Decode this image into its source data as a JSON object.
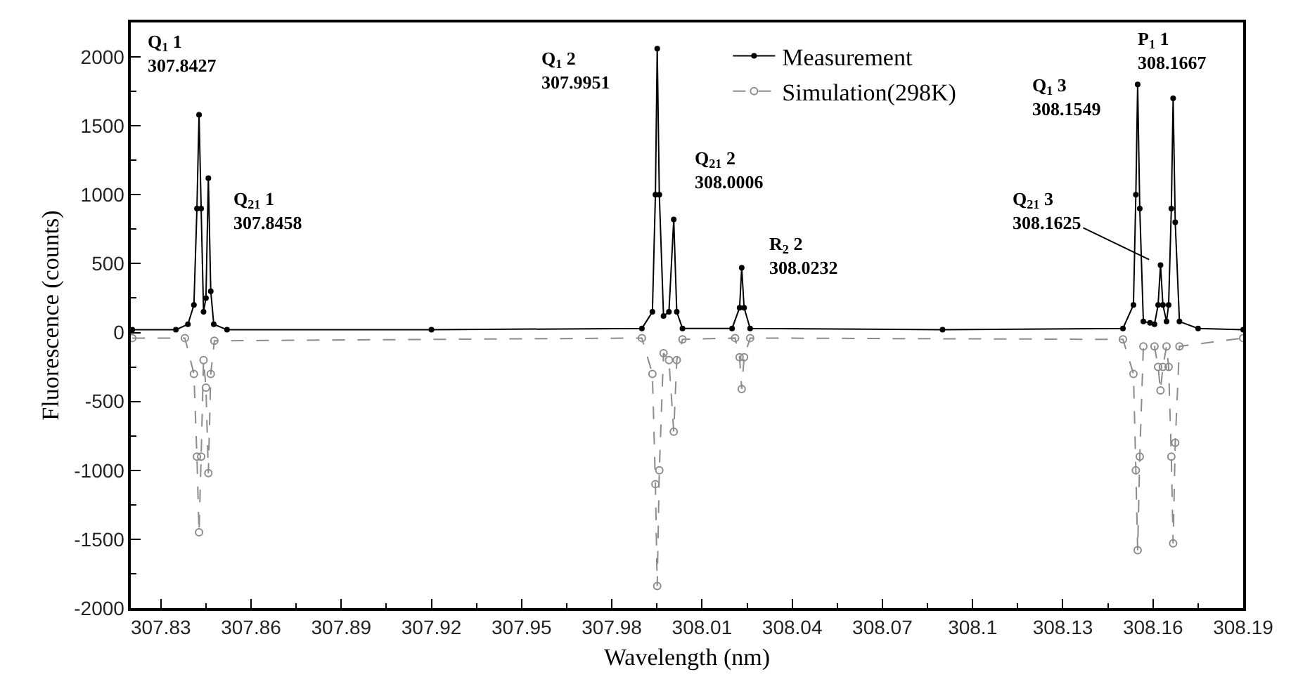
{
  "chart_data": {
    "type": "line",
    "xlabel": "Wavelength (nm)",
    "ylabel": "Fluorescence (counts)",
    "xlim": [
      307.82,
      308.19
    ],
    "xticks": [
      307.83,
      307.86,
      307.89,
      307.92,
      307.95,
      307.98,
      308.01,
      308.04,
      308.07,
      308.1,
      308.13,
      308.16,
      308.19
    ],
    "ylim": [
      -2000,
      2250
    ],
    "yticks": [
      -2000,
      -1500,
      -1000,
      -500,
      0,
      500,
      1000,
      1500,
      2000
    ],
    "legend": "top",
    "series": [
      {
        "name": "Measurement",
        "color": "#000000",
        "marker": "circle",
        "line_style": "solid",
        "x": [
          307.8205,
          307.835,
          307.839,
          307.841,
          307.842,
          307.8427,
          307.8434,
          307.8442,
          307.845,
          307.8458,
          307.8466,
          307.8476,
          307.852,
          307.92,
          307.99,
          307.9935,
          307.9945,
          307.9951,
          307.9958,
          307.9972,
          307.999,
          308.0006,
          308.0016,
          308.0035,
          308.02,
          308.0225,
          308.0232,
          308.024,
          308.026,
          308.09,
          308.15,
          308.1535,
          308.1543,
          308.1549,
          308.1556,
          308.1568,
          308.159,
          308.1605,
          308.1617,
          308.1625,
          308.1633,
          308.1645,
          308.1652,
          308.1661,
          308.1667,
          308.1674,
          308.1688,
          308.175,
          308.19
        ],
        "values": [
          20,
          20,
          60,
          200,
          900,
          1580,
          900,
          150,
          250,
          1120,
          300,
          60,
          20,
          20,
          30,
          150,
          1000,
          2060,
          1000,
          120,
          150,
          820,
          150,
          30,
          30,
          180,
          470,
          180,
          30,
          20,
          30,
          200,
          1000,
          1800,
          900,
          80,
          70,
          60,
          200,
          490,
          200,
          80,
          200,
          900,
          1700,
          800,
          80,
          30,
          20
        ]
      },
      {
        "name": "Simulation(298K)",
        "color": "#8c8c8c",
        "marker": "circle",
        "line_style": "dashed",
        "x": [
          307.8205,
          307.838,
          307.841,
          307.842,
          307.8427,
          307.8434,
          307.8442,
          307.845,
          307.8458,
          307.8466,
          307.8478,
          307.99,
          307.9935,
          307.9945,
          307.9951,
          307.9958,
          307.9972,
          307.999,
          308.0006,
          308.0016,
          308.0035,
          308.021,
          308.0225,
          308.0232,
          308.024,
          308.026,
          308.15,
          308.1535,
          308.1543,
          308.1549,
          308.1556,
          308.1568,
          308.1605,
          308.1617,
          308.1625,
          308.1633,
          308.1645,
          308.1652,
          308.1661,
          308.1667,
          308.1674,
          308.1688,
          308.19
        ],
        "values": [
          -40,
          -40,
          -300,
          -900,
          -1450,
          -900,
          -200,
          -400,
          -1020,
          -300,
          -60,
          -40,
          -300,
          -1100,
          -1840,
          -1000,
          -150,
          -200,
          -720,
          -200,
          -50,
          -40,
          -180,
          -410,
          -180,
          -40,
          -50,
          -300,
          -1000,
          -1580,
          -900,
          -100,
          -100,
          -250,
          -420,
          -250,
          -100,
          -250,
          -900,
          -1530,
          -800,
          -100,
          -40
        ]
      }
    ],
    "annotations": [
      {
        "text": "Q$_{1}$ 1\n307.8427",
        "x": 307.8427,
        "y": 1580
      },
      {
        "text": "Q$_{21}$ 1\n307.8458",
        "x": 307.8458,
        "y": 1120
      },
      {
        "text": "Q$_{1}$ 2\n307.9951",
        "x": 307.9951,
        "y": 2060
      },
      {
        "text": "Q$_{21}$ 2\n308.0006",
        "x": 308.0006,
        "y": 820
      },
      {
        "text": "R$_{2}$ 2\n308.0232",
        "x": 308.0232,
        "y": 470
      },
      {
        "text": "Q$_{1}$ 3\n308.1549",
        "x": 308.1549,
        "y": 1800
      },
      {
        "text": "Q$_{21}$ 3\n308.1625",
        "x": 308.1625,
        "y": 490
      },
      {
        "text": "P$_{1}$ 1\n308.1667",
        "x": 308.1667,
        "y": 1700
      }
    ]
  }
}
